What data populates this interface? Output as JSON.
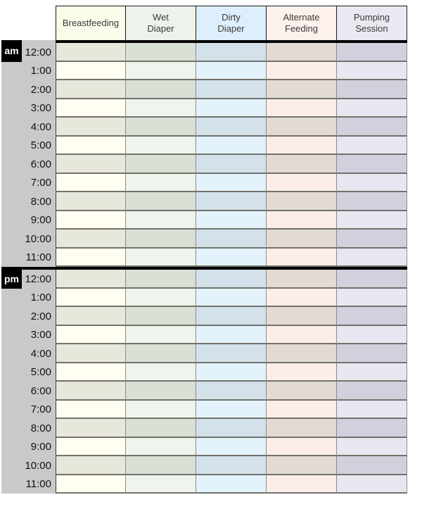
{
  "table": {
    "columns": [
      {
        "id": "breastfeeding",
        "label": "Breastfeeding",
        "header_bg": "#fbfbe9",
        "row_light": "#fffef1",
        "row_dark": "#e8e7dc"
      },
      {
        "id": "wet-diaper",
        "label": "Wet\nDiaper",
        "header_bg": "#edf3ea",
        "row_light": "#eff4ec",
        "row_dark": "#d9e0d6"
      },
      {
        "id": "dirty-diaper",
        "label": "Dirty\nDiaper",
        "header_bg": "#ddeffa",
        "row_light": "#e3f3fc",
        "row_dark": "#d3e1ea"
      },
      {
        "id": "alternate-feeding",
        "label": "Alternate\nFeeding",
        "header_bg": "#fdf1ec",
        "row_light": "#fbeee8",
        "row_dark": "#e3dad4"
      },
      {
        "id": "pumping-session",
        "label": "Pumping\nSession",
        "header_bg": "#eae9f2",
        "row_light": "#e8e7f1",
        "row_dark": "#d1d1dd"
      }
    ],
    "periods": [
      {
        "label": "am",
        "times": [
          "12:00",
          "1:00",
          "2:00",
          "3:00",
          "4:00",
          "5:00",
          "6:00",
          "7:00",
          "8:00",
          "9:00",
          "10:00",
          "11:00"
        ]
      },
      {
        "label": "pm",
        "times": [
          "12:00",
          "1:00",
          "2:00",
          "3:00",
          "4:00",
          "5:00",
          "6:00",
          "7:00",
          "8:00",
          "9:00",
          "10:00",
          "11:00"
        ]
      }
    ]
  },
  "colors": {
    "page_bg": "#ffffff",
    "gutter": "#c9c9c9",
    "badge_bg": "#000000",
    "badge_text": "#ffffff",
    "divider": "#000000",
    "header_border": "#1a1a1a",
    "header_text": "#3a3a3a",
    "time_text": "#111111",
    "row_border": "#72726b",
    "col_border": "#8a8a8a",
    "data_left_border": "#3c3c3c"
  }
}
